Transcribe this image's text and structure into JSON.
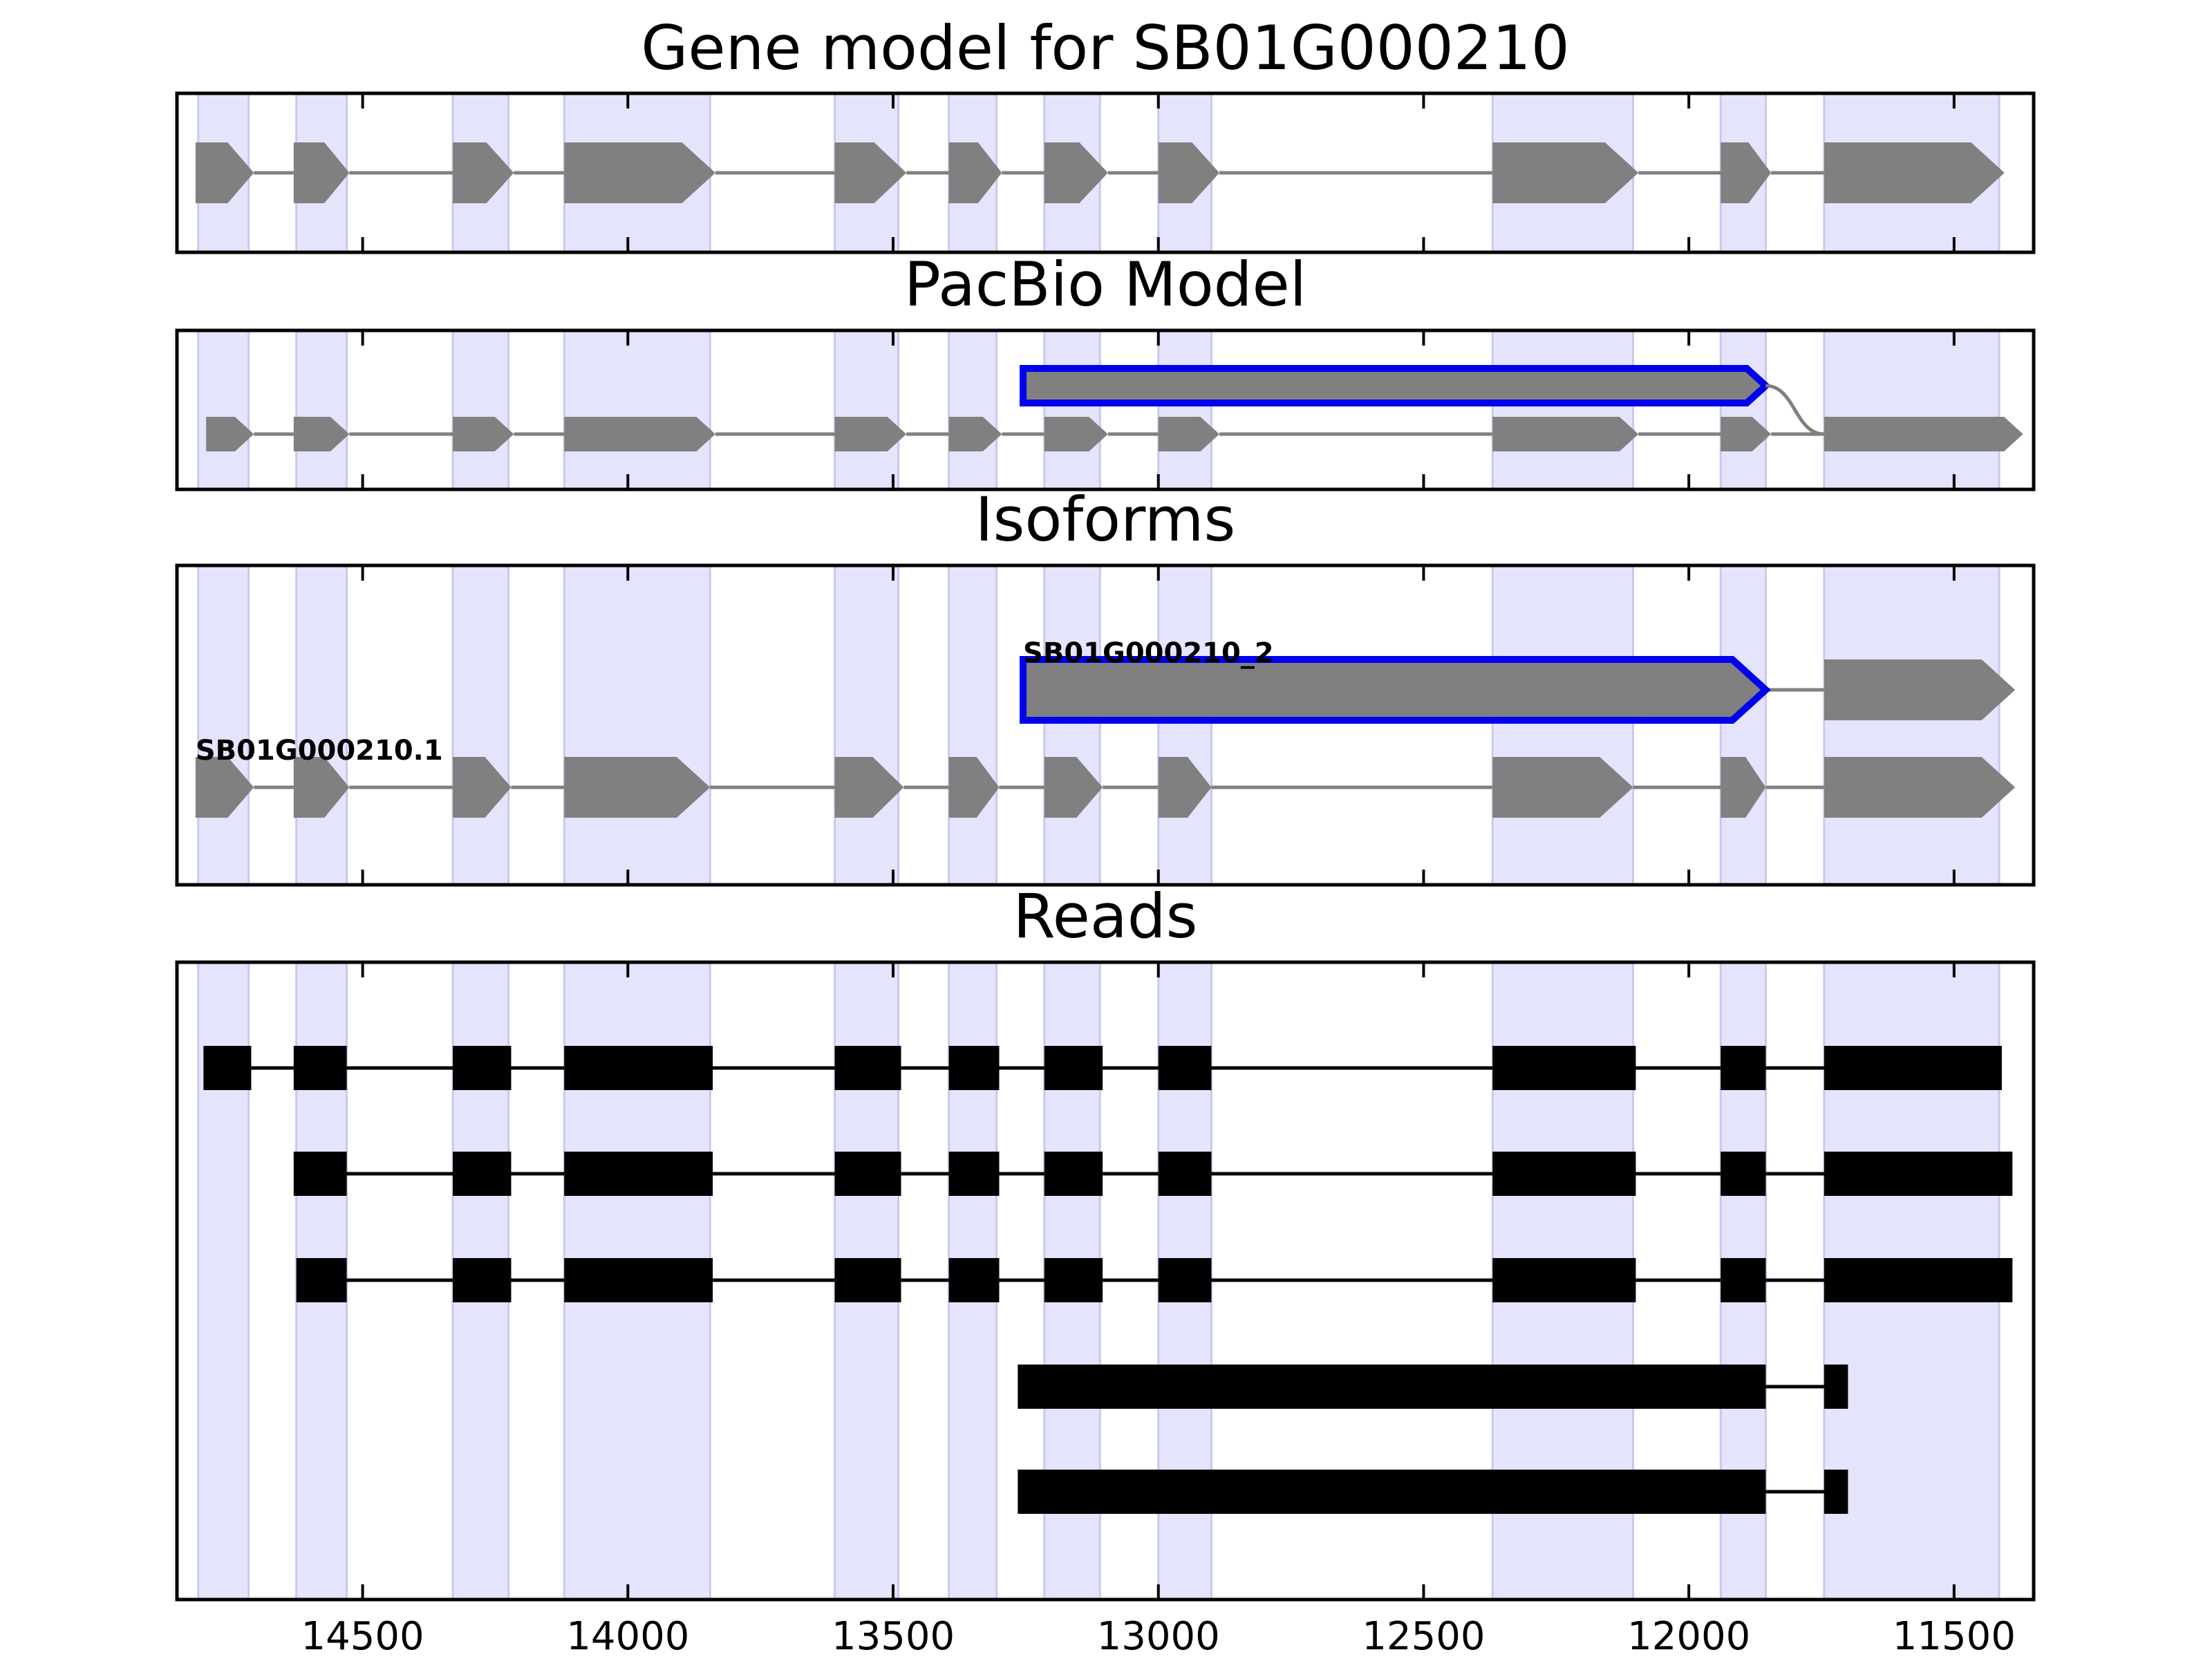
{
  "chart_data": {
    "type": "gene-structure",
    "x_axis": {
      "reversed": true,
      "xlim": [
        14850,
        11350
      ],
      "ticks": [
        14500,
        14000,
        13500,
        13000,
        12500,
        12000,
        11500
      ]
    },
    "exon_bands": [
      [
        14810,
        14715
      ],
      [
        14625,
        14530
      ],
      [
        14330,
        14225
      ],
      [
        14120,
        13845
      ],
      [
        13610,
        13490
      ],
      [
        13395,
        13305
      ],
      [
        13215,
        13110
      ],
      [
        13000,
        12900
      ],
      [
        12370,
        12105
      ],
      [
        11940,
        11855
      ],
      [
        11745,
        11415
      ]
    ],
    "colors": {
      "band": "#e4e4fc",
      "band_edge": "#c8c8f0",
      "exon": "#808080",
      "intron": "#808080",
      "highlight": "#0000ee",
      "read": "#000000",
      "read_line": "#000000"
    },
    "panels": [
      {
        "title": "Gene model for SB01G000210",
        "kind": "model",
        "tracks": [
          {
            "exons": [
              [
                14815,
                14705
              ],
              [
                14630,
                14525
              ],
              [
                14330,
                14215
              ],
              [
                14120,
                13835
              ],
              [
                13610,
                13475
              ],
              [
                13395,
                13295
              ],
              [
                13215,
                13095
              ],
              [
                13000,
                12885
              ],
              [
                12370,
                12095
              ],
              [
                11940,
                11845
              ],
              [
                11745,
                11405
              ]
            ]
          }
        ]
      },
      {
        "title": "PacBio Model",
        "kind": "model",
        "tracks": [
          {
            "exons": [
              [
                14795,
                14705
              ],
              [
                14630,
                14525
              ],
              [
                14330,
                14215
              ],
              [
                14120,
                13835
              ],
              [
                13610,
                13475
              ],
              [
                13395,
                13295
              ],
              [
                13215,
                13095
              ],
              [
                13000,
                12885
              ],
              [
                12370,
                12095
              ],
              [
                11940,
                11845
              ],
              [
                11745,
                11370
              ]
            ]
          },
          {
            "exons": [
              [
                13255,
                11855
              ]
            ],
            "highlight": true,
            "connect_to": 11745
          }
        ]
      },
      {
        "title": "Isoforms",
        "kind": "model",
        "tracks": [
          {
            "label": "SB01G000210.1",
            "exons": [
              [
                14815,
                14705
              ],
              [
                14630,
                14525
              ],
              [
                14330,
                14220
              ],
              [
                14120,
                13845
              ],
              [
                13610,
                13480
              ],
              [
                13395,
                13300
              ],
              [
                13215,
                13105
              ],
              [
                13000,
                12900
              ],
              [
                12370,
                12105
              ],
              [
                11940,
                11855
              ],
              [
                11745,
                11385
              ]
            ]
          },
          {
            "label": "SB01G000210_2",
            "exons": [
              [
                13255,
                11855
              ],
              [
                11745,
                11385
              ]
            ],
            "highlight_first": true
          }
        ]
      },
      {
        "title": "Reads",
        "kind": "reads",
        "tracks": [
          {
            "exons": [
              [
                14800,
                14710
              ],
              [
                14630,
                14530
              ],
              [
                14330,
                14220
              ],
              [
                14120,
                13840
              ],
              [
                13610,
                13485
              ],
              [
                13395,
                13300
              ],
              [
                13215,
                13105
              ],
              [
                13000,
                12900
              ],
              [
                12370,
                12100
              ],
              [
                11940,
                11855
              ],
              [
                11745,
                11410
              ]
            ]
          },
          {
            "exons": [
              [
                14630,
                14530
              ],
              [
                14330,
                14220
              ],
              [
                14120,
                13840
              ],
              [
                13610,
                13485
              ],
              [
                13395,
                13300
              ],
              [
                13215,
                13105
              ],
              [
                13000,
                12900
              ],
              [
                12370,
                12100
              ],
              [
                11940,
                11855
              ],
              [
                11745,
                11390
              ]
            ]
          },
          {
            "exons": [
              [
                14625,
                14530
              ],
              [
                14330,
                14220
              ],
              [
                14120,
                13840
              ],
              [
                13610,
                13485
              ],
              [
                13395,
                13300
              ],
              [
                13215,
                13105
              ],
              [
                13000,
                12900
              ],
              [
                12370,
                12100
              ],
              [
                11940,
                11855
              ],
              [
                11745,
                11390
              ]
            ]
          },
          {
            "exons": [
              [
                13265,
                11855
              ],
              [
                11745,
                11700
              ]
            ]
          },
          {
            "exons": [
              [
                13265,
                11855
              ],
              [
                11745,
                11700
              ]
            ]
          }
        ]
      }
    ]
  }
}
